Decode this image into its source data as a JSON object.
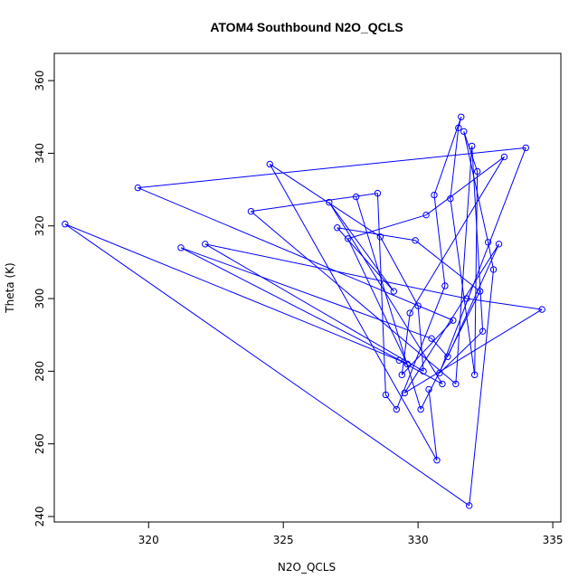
{
  "chart_data": {
    "type": "line",
    "title": "ATOM4 Southbound N2O_QCLS",
    "xlabel": "N2O_QCLS",
    "ylabel": "Theta (K)",
    "xlim": [
      316.5,
      335.3
    ],
    "ylim": [
      238.5,
      367.5
    ],
    "x_ticks": [
      320,
      325,
      330,
      335
    ],
    "y_ticks": [
      240,
      260,
      280,
      300,
      320,
      340,
      360
    ],
    "grid": false,
    "legend": "none",
    "line_color": "#0000ff",
    "marker": "open-circle",
    "series": [
      {
        "x": [
          316.9,
          319.6,
          321.2,
          322.1,
          323.8,
          324.5,
          326.7,
          327.0,
          327.4,
          327.7,
          328.5,
          328.6,
          328.8,
          329.1,
          329.2,
          329.3,
          329.4,
          329.5,
          329.6,
          329.7,
          329.9,
          330.0,
          330.1,
          330.2,
          330.3,
          330.4,
          330.5,
          330.6,
          330.7,
          330.8,
          330.9,
          331.0,
          331.1,
          331.2,
          331.3,
          331.4,
          331.5,
          331.6,
          331.7,
          331.8,
          331.9,
          332.0,
          332.1,
          332.2,
          332.3,
          332.4,
          332.6,
          332.8,
          333.0,
          333.2,
          334.0,
          334.6
        ],
        "y": [
          320.5,
          330.5,
          314.0,
          315.0,
          324.0,
          337.0,
          326.5,
          319.5,
          316.5,
          328.0,
          329.0,
          317.0,
          273.5,
          302.0,
          269.5,
          283.0,
          279.0,
          274.0,
          282.0,
          296.0,
          316.0,
          298.0,
          269.5,
          280.0,
          323.0,
          275.0,
          289.0,
          328.5,
          255.5,
          279.5,
          276.5,
          303.5,
          284.0,
          327.5,
          294.0,
          276.5,
          347.0,
          350.0,
          346.0,
          300.0,
          243.0,
          342.0,
          279.0,
          335.0,
          302.0,
          291.0,
          315.5,
          308.0,
          315.0,
          339.0,
          341.5,
          297.0
        ]
      }
    ]
  }
}
